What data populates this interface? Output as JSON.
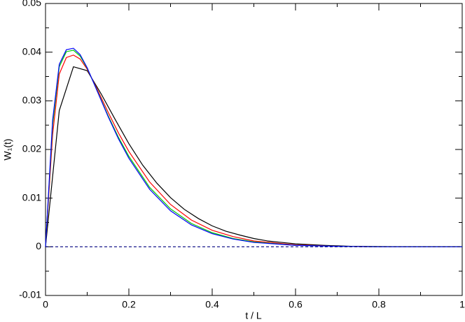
{
  "chart_data": {
    "type": "line",
    "xlabel": "t / L",
    "ylabel": "W₁(t)",
    "xlim": [
      0,
      1
    ],
    "ylim": [
      -0.01,
      0.05
    ],
    "xticks": [
      0,
      0.2,
      0.4,
      0.6,
      0.8,
      1
    ],
    "yticks": [
      -0.01,
      0,
      0.01,
      0.02,
      0.03,
      0.04,
      0.05
    ],
    "xminorticks": [
      0.1,
      0.3,
      0.5,
      0.7,
      0.9
    ],
    "yminorticks": [
      -0.005,
      0.005,
      0.015,
      0.025,
      0.035,
      0.045
    ],
    "series": [
      {
        "color": "#000000",
        "x": [
          0,
          0.033,
          0.067,
          0.1,
          0.133,
          0.167,
          0.2,
          0.233,
          0.267,
          0.3,
          0.333,
          0.367,
          0.4,
          0.433,
          0.467,
          0.5,
          0.533,
          0.567,
          0.6,
          0.667,
          0.733,
          0.8,
          0.867,
          0.933,
          1
        ],
        "values": [
          0,
          0.028,
          0.037,
          0.0362,
          0.0315,
          0.0262,
          0.0212,
          0.0168,
          0.0131,
          0.0101,
          0.0077,
          0.0058,
          0.0043,
          0.0032,
          0.0024,
          0.0017,
          0.0012,
          0.0009,
          0.0006,
          0.0003,
          0.0001,
          5e-05,
          2e-05,
          1e-05,
          0
        ]
      },
      {
        "color": "#ff0000",
        "x": [
          0,
          0.017,
          0.033,
          0.05,
          0.067,
          0.083,
          0.1,
          0.125,
          0.15,
          0.175,
          0.2,
          0.25,
          0.3,
          0.35,
          0.4,
          0.45,
          0.5,
          0.6,
          0.7,
          0.8,
          0.9,
          1
        ],
        "values": [
          0,
          0.023,
          0.0355,
          0.0389,
          0.0394,
          0.0386,
          0.0365,
          0.0322,
          0.0277,
          0.0234,
          0.0196,
          0.0133,
          0.0087,
          0.0055,
          0.0034,
          0.0021,
          0.0012,
          0.0004,
          0.0001,
          0,
          0,
          0
        ]
      },
      {
        "color": "#00cc00",
        "x": [
          0,
          0.017,
          0.033,
          0.05,
          0.067,
          0.083,
          0.1,
          0.125,
          0.15,
          0.175,
          0.2,
          0.25,
          0.3,
          0.35,
          0.4,
          0.45,
          0.5,
          0.6,
          0.7,
          0.8,
          0.9,
          1
        ],
        "values": [
          0,
          0.025,
          0.037,
          0.0401,
          0.0404,
          0.0392,
          0.0367,
          0.0319,
          0.027,
          0.0225,
          0.0186,
          0.0122,
          0.0078,
          0.0048,
          0.0029,
          0.0017,
          0.001,
          0.0003,
          0.0001,
          0,
          0,
          0
        ]
      },
      {
        "color": "#0000ff",
        "x": [
          0,
          0.017,
          0.033,
          0.05,
          0.067,
          0.083,
          0.1,
          0.125,
          0.15,
          0.175,
          0.2,
          0.25,
          0.3,
          0.35,
          0.4,
          0.45,
          0.5,
          0.6,
          0.7,
          0.8,
          0.9,
          1
        ],
        "values": [
          0,
          0.026,
          0.0375,
          0.0405,
          0.0408,
          0.0395,
          0.0368,
          0.0318,
          0.0268,
          0.0222,
          0.0182,
          0.0118,
          0.0074,
          0.0045,
          0.0027,
          0.0016,
          0.0009,
          0.0003,
          0.0001,
          0,
          0,
          0
        ]
      },
      {
        "color": "#000080",
        "dashed": true,
        "x": [
          0,
          1
        ],
        "values": [
          0,
          0
        ]
      }
    ]
  }
}
